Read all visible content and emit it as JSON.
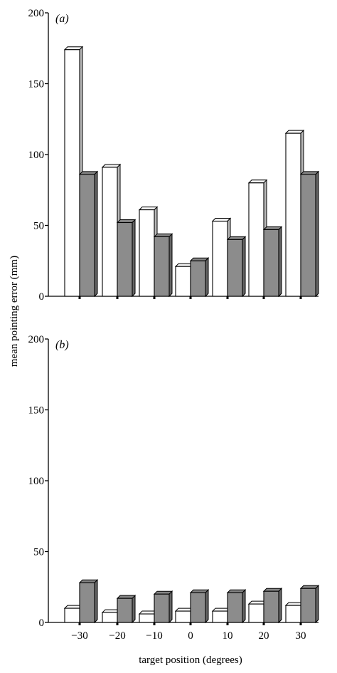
{
  "chart_data": [
    {
      "type": "bar",
      "panel_label": "(a)",
      "categories": [
        "−30",
        "−20",
        "−10",
        "0",
        "10",
        "20",
        "30"
      ],
      "series": [
        {
          "values": [
            174,
            91,
            61,
            21,
            53,
            80,
            115
          ],
          "color": "#ffffff"
        },
        {
          "values": [
            86,
            52,
            42,
            25,
            40,
            47,
            86
          ],
          "color": "#8c8c8c"
        }
      ],
      "ylim": [
        0,
        200
      ],
      "yticks": [
        0,
        50,
        100,
        150,
        200
      ],
      "bar_style": "3d",
      "grid": false,
      "legend": "none"
    },
    {
      "type": "bar",
      "panel_label": "(b)",
      "categories": [
        "−30",
        "−20",
        "−10",
        "0",
        "10",
        "20",
        "30"
      ],
      "series": [
        {
          "values": [
            10,
            7,
            6,
            8,
            8,
            13,
            12
          ],
          "color": "#ffffff"
        },
        {
          "values": [
            28,
            17,
            20,
            21,
            21,
            22,
            24
          ],
          "color": "#8c8c8c"
        }
      ],
      "ylim": [
        0,
        200
      ],
      "yticks": [
        0,
        50,
        100,
        150,
        200
      ],
      "bar_style": "3d",
      "grid": false,
      "legend": "none"
    }
  ],
  "shared_labels": {
    "ylabel": "mean pointing error (mm)",
    "xlabel": "target position (degrees)"
  }
}
